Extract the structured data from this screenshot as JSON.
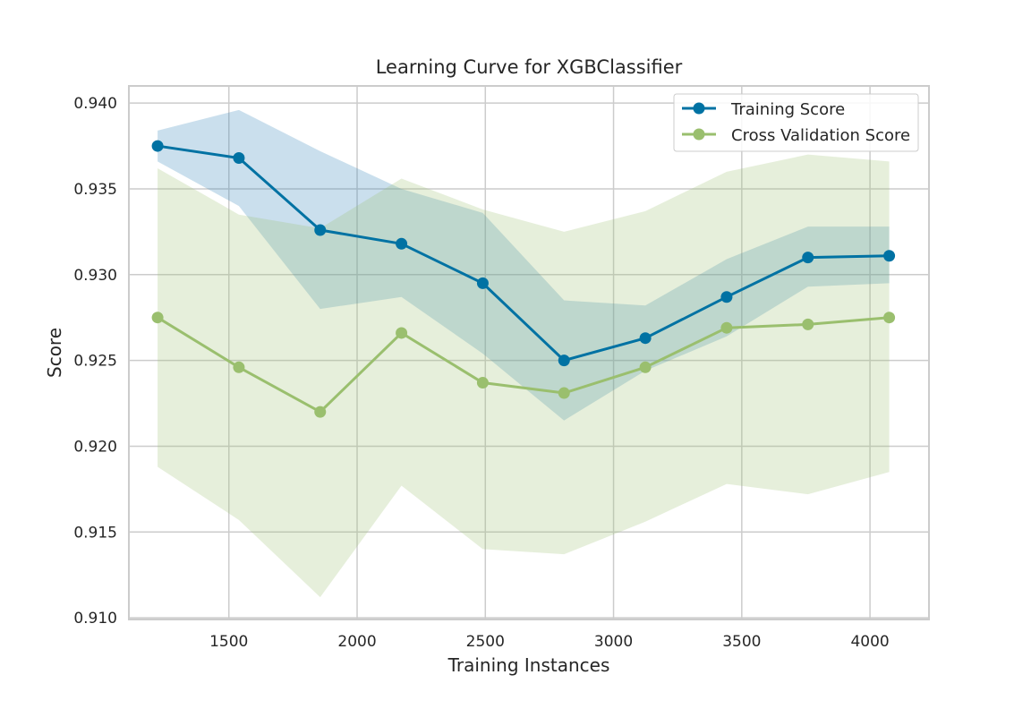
{
  "chart_data": {
    "type": "line",
    "title": "Learning Curve for XGBClassifier",
    "xlabel": "Training Instances",
    "ylabel": "Score",
    "xlim": [
      1110,
      4230
    ],
    "ylim": [
      0.9099,
      0.941
    ],
    "xticks": [
      1500,
      2000,
      2500,
      3000,
      3500,
      4000
    ],
    "yticks": [
      0.91,
      0.915,
      0.92,
      0.925,
      0.93,
      0.935,
      0.94
    ],
    "xtick_labels": [
      "1500",
      "2000",
      "2500",
      "3000",
      "3500",
      "4000"
    ],
    "ytick_labels": [
      "0.910",
      "0.915",
      "0.920",
      "0.925",
      "0.930",
      "0.935",
      "0.940"
    ],
    "grid": true,
    "legend_position": "top-right",
    "x": [
      1222,
      1539,
      1856,
      2173,
      2490,
      2807,
      3124,
      3441,
      3758,
      4075
    ],
    "series": [
      {
        "name": "Training Score",
        "color": "#0072a3",
        "band_color": "#2c7fb8",
        "values": [
          0.9375,
          0.9368,
          0.9326,
          0.9318,
          0.9295,
          0.925,
          0.9263,
          0.9287,
          0.931,
          0.9311
        ],
        "upper": [
          0.9384,
          0.9396,
          0.9372,
          0.935,
          0.9336,
          0.9285,
          0.9282,
          0.9309,
          0.9328,
          0.9328
        ],
        "lower": [
          0.9366,
          0.934,
          0.928,
          0.9287,
          0.9254,
          0.9215,
          0.9244,
          0.9264,
          0.9293,
          0.9295
        ]
      },
      {
        "name": "Cross Validation Score",
        "color": "#9abf6e",
        "band_color": "#9abf6e",
        "values": [
          0.9275,
          0.9246,
          0.922,
          0.9266,
          0.9237,
          0.9231,
          0.9246,
          0.9269,
          0.9271,
          0.9275
        ],
        "upper": [
          0.9362,
          0.9335,
          0.9327,
          0.9356,
          0.9338,
          0.9325,
          0.9337,
          0.936,
          0.937,
          0.9366
        ],
        "lower": [
          0.9188,
          0.9157,
          0.9112,
          0.9177,
          0.914,
          0.9137,
          0.9156,
          0.9178,
          0.9172,
          0.9185
        ]
      }
    ]
  }
}
